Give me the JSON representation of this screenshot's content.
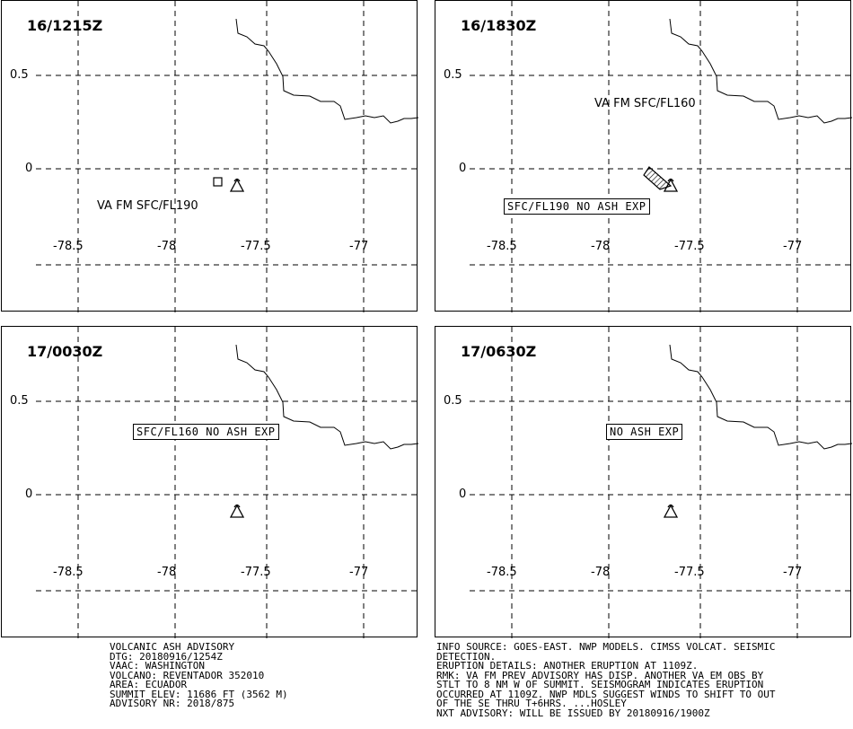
{
  "panels": [
    {
      "time": "16/1215Z",
      "label": "VA FM SFC/FL190",
      "label_style": "plain"
    },
    {
      "time": "16/1830Z",
      "label": "VA FM SFC/FL160",
      "label2": "SFC/FL190 NO ASH EXP",
      "label_style": "mixed"
    },
    {
      "time": "17/0030Z",
      "label": "SFC/FL160 NO ASH EXP",
      "label_style": "box"
    },
    {
      "time": "17/0630Z",
      "label": "NO ASH EXP",
      "label_style": "box"
    }
  ],
  "axis": {
    "lat_ticks": [
      "0.5",
      "0"
    ],
    "lon_ticks": [
      "-78.5",
      "-78",
      "-77.5",
      "-77"
    ]
  },
  "advisory_left": [
    "VOLCANIC ASH ADVISORY",
    "DTG: 20180916/1254Z",
    "VAAC: WASHINGTON",
    "VOLCANO: REVENTADOR 352010",
    "AREA: ECUADOR",
    "SUMMIT ELEV: 11686 FT (3562 M)",
    "ADVISORY NR: 2018/875"
  ],
  "advisory_right": [
    "INFO SOURCE: GOES-EAST. NWP MODELS. CIMSS VOLCAT. SEISMIC",
    "DETECTION.",
    "ERUPTION DETAILS: ANOTHER ERUPTION AT 1109Z.",
    "RMK: VA FM PREV ADVISORY HAS DISP. ANOTHER VA EM OBS BY",
    "STLT TO 8 NM W OF SUMMIT. SEISMOGRAM INDICATES ERUPTION",
    "OCCURRED AT 1109Z. NWP MDLS SUGGEST WINDS TO SHIFT TO OUT",
    "OF THE SE THRU T+6HRS. ...HOSLEY",
    "NXT ADVISORY: WILL BE ISSUED BY 20180916/1900Z"
  ]
}
